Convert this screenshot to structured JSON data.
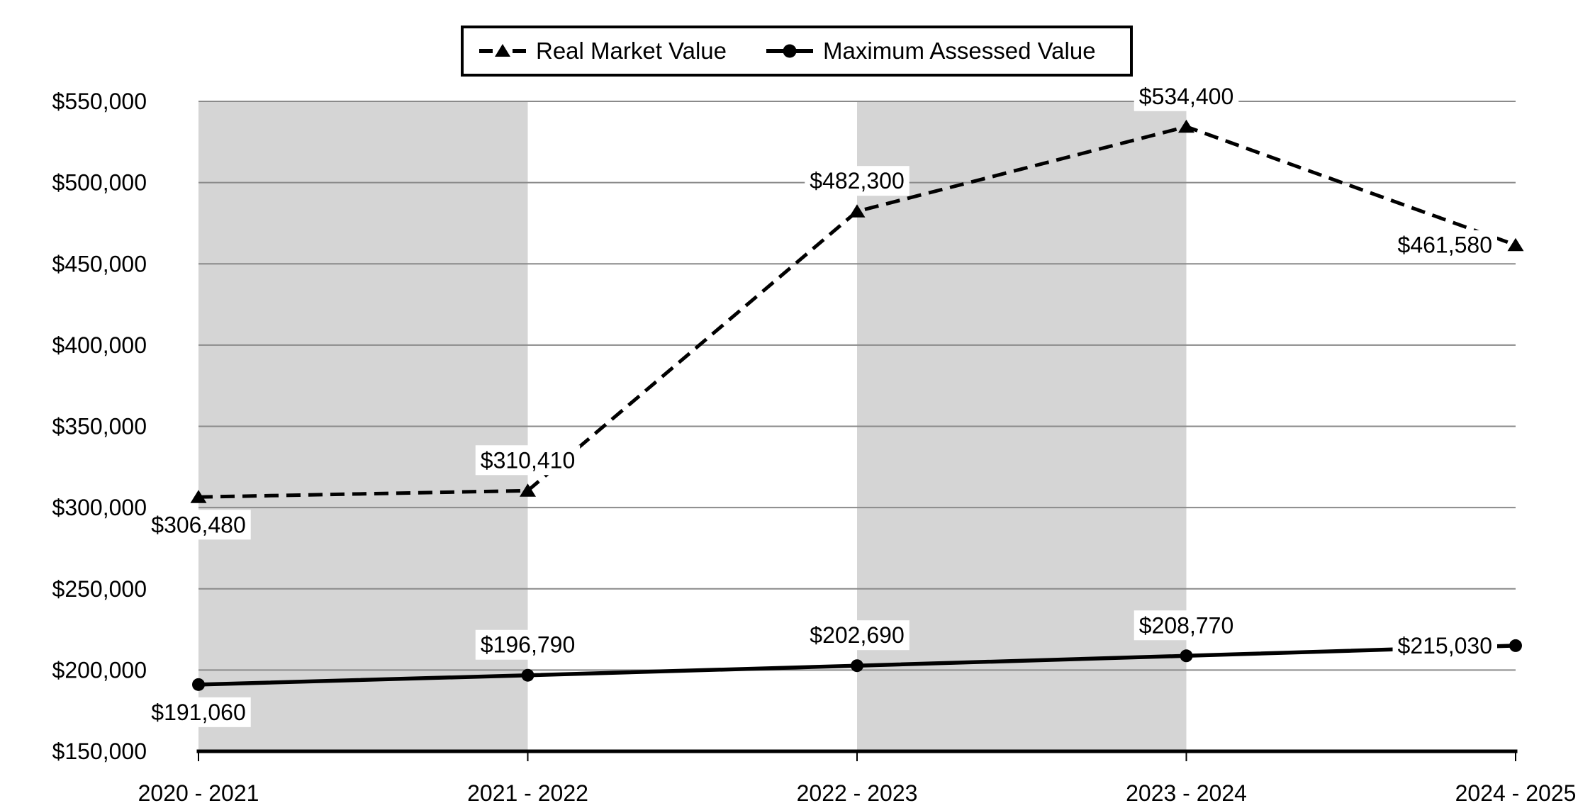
{
  "chart_data": {
    "type": "line",
    "title": "",
    "xlabel": "",
    "ylabel": "",
    "categories": [
      "2020 - 2021",
      "2021 - 2022",
      "2022 - 2023",
      "2023 - 2024",
      "2024 - 2025"
    ],
    "series": [
      {
        "name": "Real Market Value",
        "line_style": "dashed",
        "marker": "triangle",
        "values": [
          306480,
          310410,
          482300,
          534400,
          461580
        ],
        "labels": [
          "$306,480",
          "$310,410",
          "$482,300",
          "$534,400",
          "$461,580"
        ],
        "label_placement": [
          "below",
          "above",
          "above",
          "above",
          "left"
        ]
      },
      {
        "name": "Maximum Assessed Value",
        "line_style": "solid",
        "marker": "circle",
        "values": [
          191060,
          196790,
          202690,
          208770,
          215030
        ],
        "labels": [
          "$191,060",
          "$196,790",
          "$202,690",
          "$208,770",
          "$215,030"
        ],
        "label_placement": [
          "below",
          "above",
          "above",
          "above",
          "left"
        ]
      }
    ],
    "ylim": [
      150000,
      550000
    ],
    "y_step": 50000,
    "y_tick_labels": [
      "$150,000",
      "$200,000",
      "$250,000",
      "$300,000",
      "$350,000",
      "$400,000",
      "$450,000",
      "$500,000",
      "$550,000"
    ],
    "grid": true,
    "legend_position": "top",
    "shaded_bands": [
      [
        0,
        1
      ],
      [
        2,
        3
      ]
    ],
    "colors": {
      "series": "#000000",
      "band": "#d5d5d5",
      "gridline": "#8a8a8a",
      "axis": "#000000",
      "label_bg": "#ffffff",
      "background": "#ffffff"
    }
  }
}
